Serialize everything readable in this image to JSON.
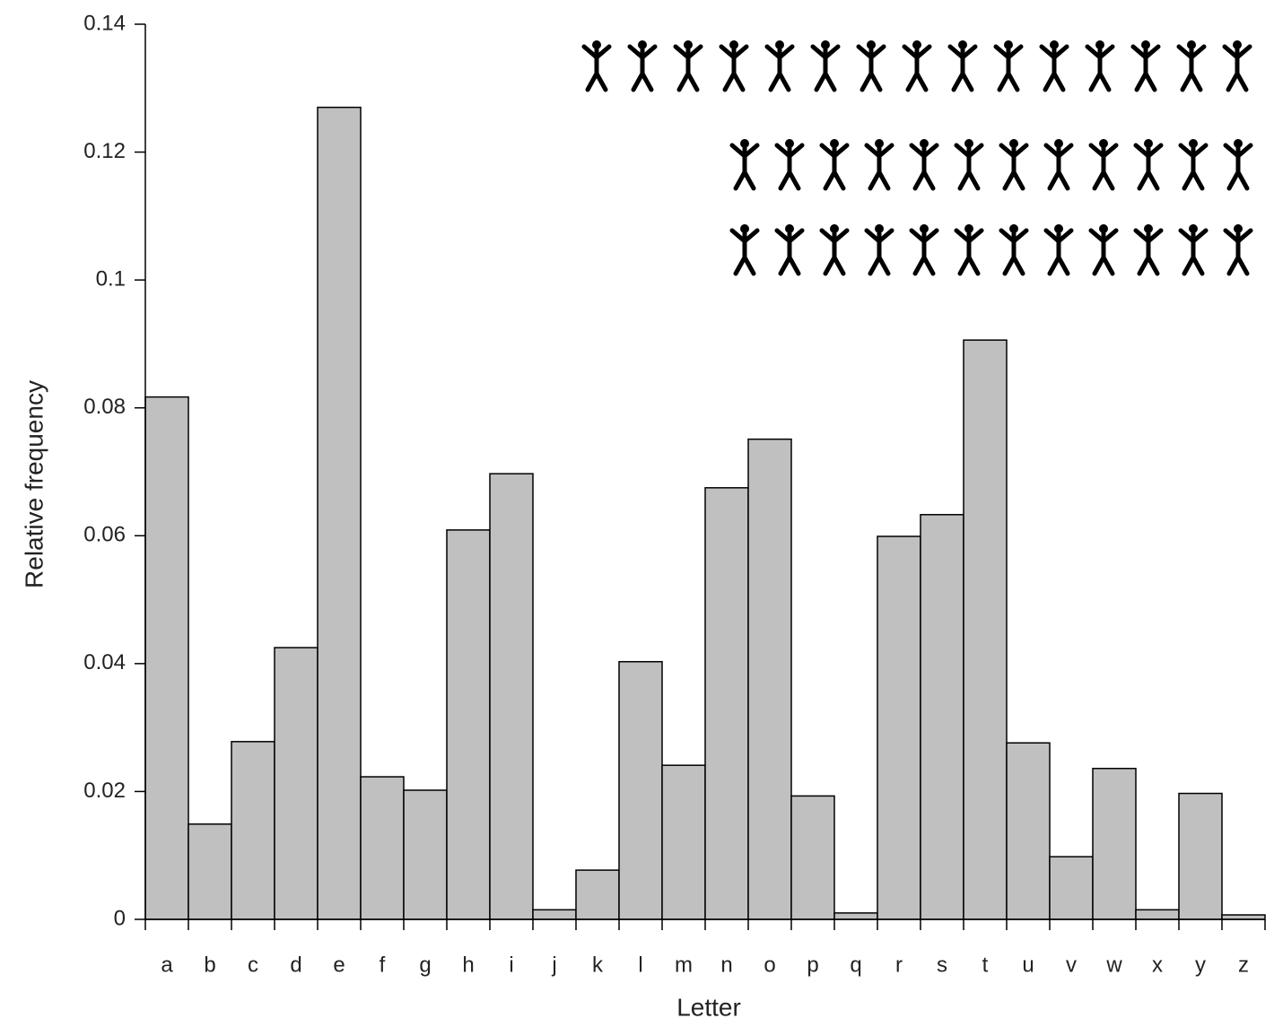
{
  "chart_data": {
    "type": "bar",
    "xlabel": "Letter",
    "ylabel": "Relative frequency",
    "categories": [
      "a",
      "b",
      "c",
      "d",
      "e",
      "f",
      "g",
      "h",
      "i",
      "j",
      "k",
      "l",
      "m",
      "n",
      "o",
      "p",
      "q",
      "r",
      "s",
      "t",
      "u",
      "v",
      "w",
      "x",
      "y",
      "z"
    ],
    "values": [
      0.0817,
      0.0149,
      0.0278,
      0.0425,
      0.127,
      0.0223,
      0.0202,
      0.0609,
      0.0697,
      0.0015,
      0.0077,
      0.0403,
      0.0241,
      0.0675,
      0.0751,
      0.0193,
      0.001,
      0.0599,
      0.0633,
      0.0906,
      0.0276,
      0.0098,
      0.0236,
      0.0015,
      0.0197,
      0.0007
    ],
    "color": "#c0c0c0",
    "ylim": [
      0,
      0.14
    ],
    "yticks": [
      0,
      0.02,
      0.04,
      0.06,
      0.08,
      0.1,
      0.12,
      0.14
    ]
  }
}
